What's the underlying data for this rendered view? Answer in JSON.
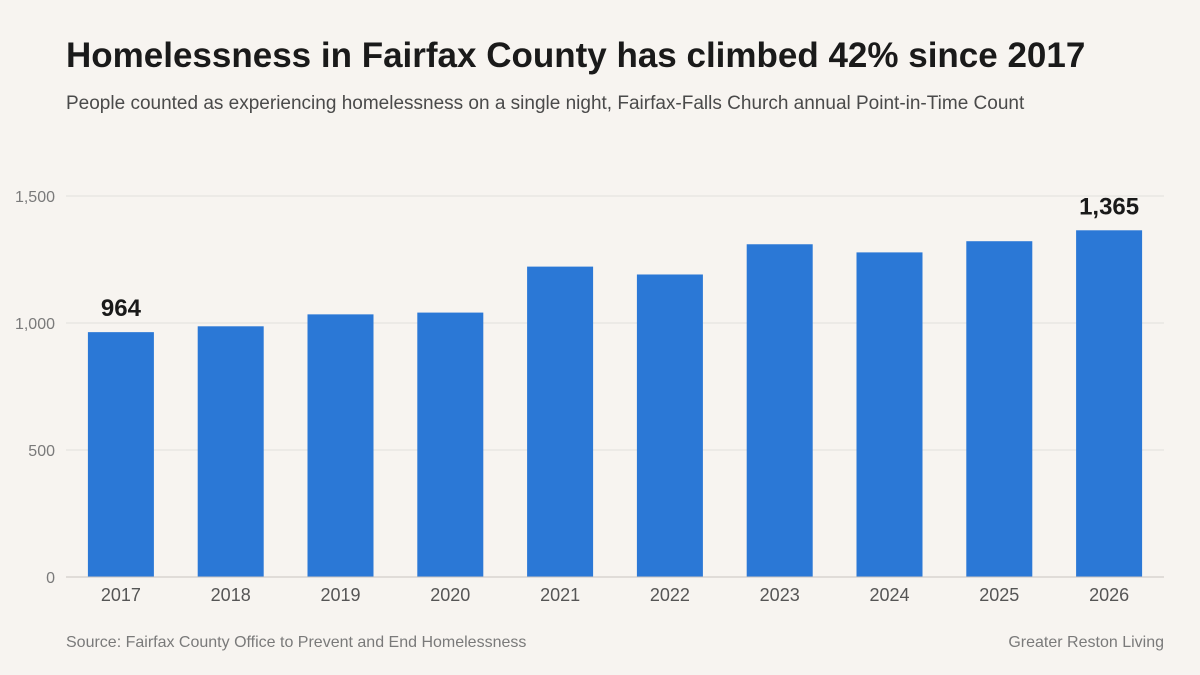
{
  "header": {
    "title": "Homelessness in Fairfax County has climbed 42% since 2017",
    "subtitle": "People counted as experiencing homelessness on a single night, Fairfax-Falls Church annual Point-in-Time Count"
  },
  "footer": {
    "source": "Source: Fairfax County Office to Prevent and End Homelessness",
    "brand": "Greater Reston Living"
  },
  "colors": {
    "bar": "#2b78d6",
    "grid": "#e2dfdb",
    "axis": "#c8c5c1",
    "tick_label": "#7a7a7a",
    "category_label": "#555555",
    "data_label": "#1a1a1a"
  },
  "chart_data": {
    "type": "bar",
    "title": "Homelessness in Fairfax County has climbed 42% since 2017",
    "subtitle": "People counted as experiencing homelessness on a single night, Fairfax-Falls Church annual Point-in-Time Count",
    "xlabel": "",
    "ylabel": "",
    "categories": [
      "2017",
      "2018",
      "2019",
      "2020",
      "2021",
      "2022",
      "2023",
      "2024",
      "2025",
      "2026"
    ],
    "values": [
      964,
      987,
      1034,
      1041,
      1222,
      1191,
      1310,
      1278,
      1322,
      1365
    ],
    "ylim": [
      0,
      1500
    ],
    "yticks": [
      0,
      500,
      1000,
      1500
    ],
    "ytick_labels": [
      "0",
      "500",
      "1,000",
      "1,500"
    ],
    "data_labels": [
      {
        "category": "2017",
        "text": "964"
      },
      {
        "category": "2026",
        "text": "1,365"
      }
    ],
    "grid": true,
    "legend": "none"
  }
}
